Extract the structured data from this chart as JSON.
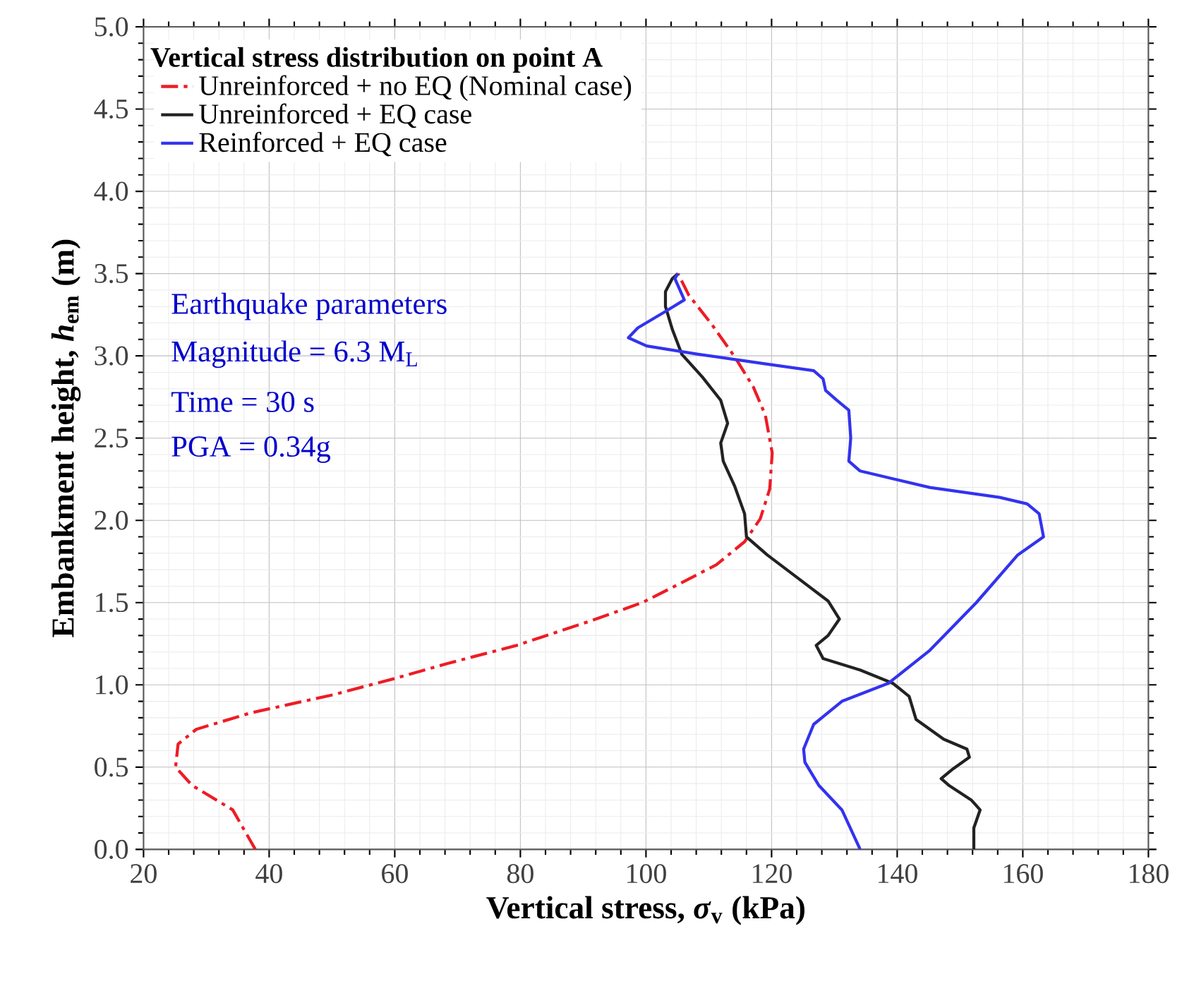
{
  "chart_data": {
    "type": "line",
    "xlabel": "Vertical stress, *σ*$_{v}$ (kPa)",
    "ylabel": "Embankment height, *h*$_{em}$ (m)",
    "legend_title": "Vertical stress distribution on point A",
    "legend": "top left",
    "grid": true,
    "xlim": [
      20,
      180
    ],
    "xticks": [
      20,
      40,
      60,
      80,
      100,
      120,
      140,
      160,
      180
    ],
    "ylim": [
      0,
      5
    ],
    "yticks": [
      {
        "value": 0,
        "label": "0.0"
      },
      {
        "value": 0.5,
        "label": "0.5"
      },
      {
        "value": 1,
        "label": "1.0"
      },
      {
        "value": 1.5,
        "label": "1.5"
      },
      {
        "value": 2,
        "label": "2.0"
      },
      {
        "value": 2.5,
        "label": "2.5"
      },
      {
        "value": 3,
        "label": "3.0"
      },
      {
        "value": 3.5,
        "label": "3.5"
      },
      {
        "value": 4,
        "label": "4.0"
      },
      {
        "value": 4.5,
        "label": "4.5"
      },
      {
        "value": 5,
        "label": "5.0"
      }
    ],
    "annotations": [
      "Earthquake parameters",
      "Magnitude = 6.3 M$_{L}$",
      "Time = 30 s",
      "PGA = 0.34g"
    ],
    "series": [
      {
        "name": "Unreinforced + no EQ (Nominal case)",
        "color": "#ee1c25",
        "line_style": "dashdot",
        "x": [
          37.8,
          34.2,
          27.7,
          25.1,
          25.5,
          28.4,
          37.1,
          50.2,
          60.1,
          68.4,
          79.4,
          91.3,
          99.4,
          104.6,
          111.2,
          115.7,
          118.2,
          119.7,
          120.1,
          119.0,
          117.1,
          114.2,
          110.5,
          106.8,
          105.1
        ],
        "values": [
          0.0,
          0.24,
          0.39,
          0.5,
          0.64,
          0.73,
          0.83,
          0.94,
          1.04,
          1.13,
          1.24,
          1.39,
          1.5,
          1.6,
          1.73,
          1.87,
          2.01,
          2.19,
          2.41,
          2.64,
          2.81,
          2.99,
          3.19,
          3.37,
          3.5
        ]
      },
      {
        "name": "Unreinforced + EQ case",
        "color": "#222222",
        "line_style": "solid",
        "x": [
          152.2,
          152.2,
          153.2,
          151.8,
          148.2,
          147.0,
          148.9,
          151.5,
          151.1,
          147.4,
          143.0,
          141.9,
          139.3,
          134.1,
          128.2,
          127.1,
          129.0,
          130.8,
          129.0,
          124.5,
          119.3,
          116.0,
          115.7,
          114.1,
          112.3,
          111.9,
          113.0,
          111.9,
          109.0,
          105.7,
          104.2,
          103.1,
          103.1,
          104.2,
          105.1
        ],
        "values": [
          0.0,
          0.13,
          0.24,
          0.3,
          0.39,
          0.43,
          0.49,
          0.56,
          0.61,
          0.67,
          0.79,
          0.93,
          1.01,
          1.09,
          1.16,
          1.24,
          1.3,
          1.4,
          1.51,
          1.64,
          1.79,
          1.9,
          2.04,
          2.21,
          2.36,
          2.47,
          2.59,
          2.73,
          2.87,
          3.01,
          3.16,
          3.3,
          3.39,
          3.47,
          3.5
        ]
      },
      {
        "name": "Reinforced + EQ case",
        "color": "#3333ee",
        "line_style": "solid",
        "x": [
          134.1,
          131.2,
          127.5,
          125.3,
          125.1,
          126.7,
          131.2,
          138.6,
          145.2,
          152.6,
          159.2,
          163.3,
          162.6,
          160.7,
          156.3,
          145.2,
          134.1,
          132.3,
          132.6,
          132.3,
          130.4,
          128.6,
          128.2,
          126.7,
          119.3,
          108.3,
          100.1,
          97.2,
          98.7,
          103.1,
          106.1,
          104.6,
          105.1
        ],
        "values": [
          0.0,
          0.24,
          0.39,
          0.53,
          0.61,
          0.76,
          0.9,
          1.01,
          1.21,
          1.5,
          1.79,
          1.9,
          2.04,
          2.1,
          2.14,
          2.2,
          2.3,
          2.36,
          2.5,
          2.67,
          2.73,
          2.79,
          2.86,
          2.91,
          2.95,
          3.01,
          3.06,
          3.11,
          3.17,
          3.27,
          3.34,
          3.47,
          3.5
        ]
      }
    ]
  }
}
